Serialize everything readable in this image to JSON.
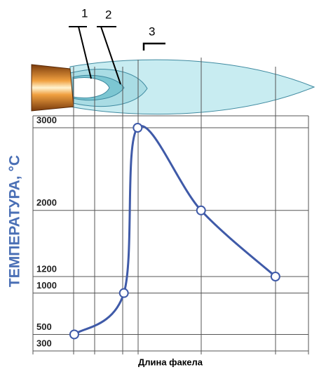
{
  "chart_data": {
    "type": "line",
    "y_label": "ТЕМПЕРАТУРА, °С",
    "x_label": "Длина факела",
    "annotations": [
      "1",
      "2",
      "3"
    ],
    "x": [
      15,
      33,
      38,
      61,
      88
    ],
    "xlim": [
      0,
      100
    ],
    "series": [
      {
        "name": null,
        "color": "#3f5aa8",
        "values": [
          500,
          1000,
          3000,
          2000,
          1200
        ]
      }
    ],
    "ylim": [
      300,
      3000
    ],
    "yticks": [
      300,
      500,
      1000,
      1200,
      2000,
      3000
    ],
    "grid": true
  }
}
